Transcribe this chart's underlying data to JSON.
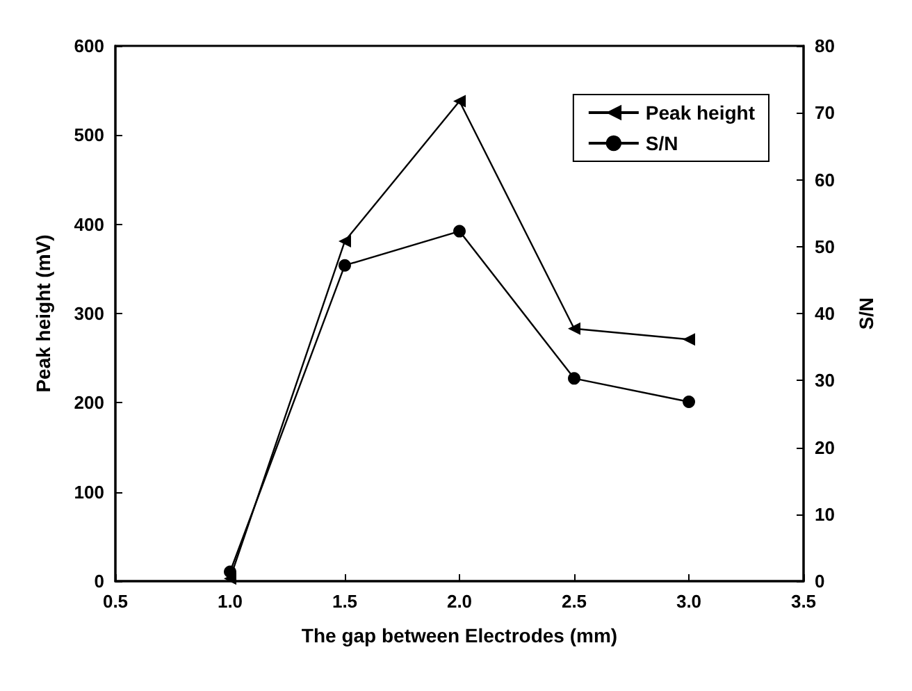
{
  "chart_data": {
    "type": "line",
    "xlabel": "The gap between Electrodes (mm)",
    "ylabel": "Peak height (mV)",
    "y2label": "S/N",
    "x": [
      1.0,
      1.5,
      2.0,
      2.5,
      3.0
    ],
    "series": [
      {
        "name": "Peak height",
        "color": "#000000",
        "marker": "triangle",
        "values": [
          3,
          381,
          538,
          283,
          271
        ]
      },
      {
        "name": "S/N",
        "color": "#000000",
        "marker": "circle",
        "axis": "y2",
        "values": [
          1.4,
          47.2,
          52.3,
          30.3,
          26.8
        ]
      }
    ],
    "xlim": [
      0.5,
      3.5
    ],
    "xticks": [
      {
        "value": 0.5,
        "label": "0.5"
      },
      {
        "value": 1,
        "label": "1.0"
      },
      {
        "value": 1.5,
        "label": "1.5"
      },
      {
        "value": 2,
        "label": "2.0"
      },
      {
        "value": 2.5,
        "label": "2.5"
      },
      {
        "value": 3,
        "label": "3.0"
      },
      {
        "value": 3.5,
        "label": "3.5"
      }
    ],
    "ylim": [
      0,
      600
    ],
    "yticks": [
      0,
      100,
      200,
      300,
      400,
      500,
      600
    ],
    "y2lim": [
      0,
      80
    ],
    "y2ticks": [
      0,
      10,
      20,
      30,
      40,
      50,
      60,
      70,
      80
    ],
    "legend": "top right",
    "grid": false,
    "line_style": "solid"
  }
}
